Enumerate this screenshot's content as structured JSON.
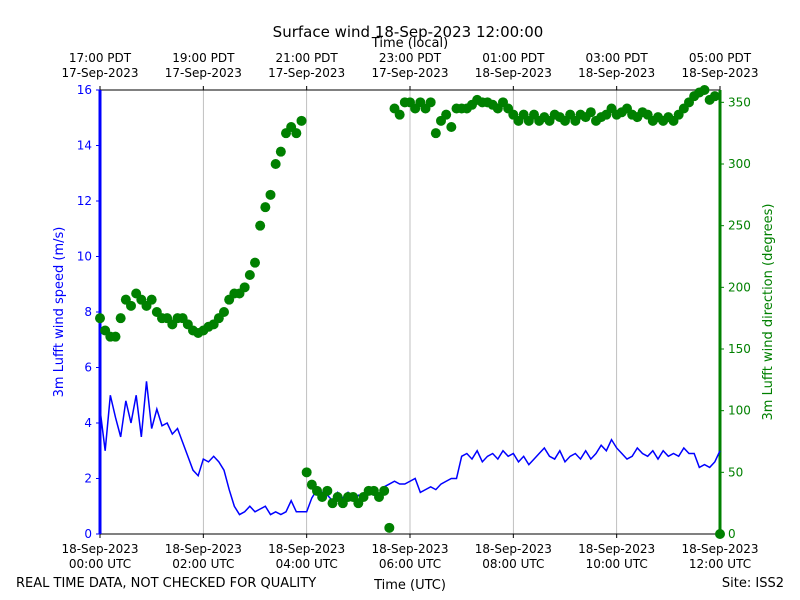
{
  "chart_data": {
    "type": "line",
    "title": "Surface wind 18-Sep-2023 12:00:00",
    "x2label": "Time (local)",
    "xlabel": "Time (UTC)",
    "ylabel": "3m Lufft wind speed (m/s)",
    "y2label": "3m Lufft wind direction (degrees)",
    "footer_left": "REAL TIME DATA, NOT CHECKED FOR QUALITY",
    "footer_right": "Site: ISS2",
    "xlim": [
      0,
      12
    ],
    "xticks": [
      {
        "value": 0,
        "label": "18-Sep-2023\n00:00 UTC"
      },
      {
        "value": 2,
        "label": "18-Sep-2023\n02:00 UTC"
      },
      {
        "value": 4,
        "label": "18-Sep-2023\n04:00 UTC"
      },
      {
        "value": 6,
        "label": "18-Sep-2023\n06:00 UTC"
      },
      {
        "value": 8,
        "label": "18-Sep-2023\n08:00 UTC"
      },
      {
        "value": 10,
        "label": "18-Sep-2023\n10:00 UTC"
      },
      {
        "value": 12,
        "label": "18-Sep-2023\n12:00 UTC"
      }
    ],
    "x2ticks": [
      {
        "value": 0,
        "label": "17:00 PDT\n17-Sep-2023"
      },
      {
        "value": 2,
        "label": "19:00 PDT\n17-Sep-2023"
      },
      {
        "value": 4,
        "label": "21:00 PDT\n17-Sep-2023"
      },
      {
        "value": 6,
        "label": "23:00 PDT\n17-Sep-2023"
      },
      {
        "value": 8,
        "label": "01:00 PDT\n18-Sep-2023"
      },
      {
        "value": 10,
        "label": "03:00 PDT\n18-Sep-2023"
      },
      {
        "value": 12,
        "label": "05:00 PDT\n18-Sep-2023"
      }
    ],
    "ylim": [
      0,
      16
    ],
    "yticks": [
      0,
      2,
      4,
      6,
      8,
      10,
      12,
      14,
      16
    ],
    "y2lim": [
      0,
      360
    ],
    "y2ticks": [
      0,
      50,
      100,
      150,
      200,
      250,
      300,
      350
    ],
    "grid": true,
    "x": [
      0,
      0.1,
      0.2,
      0.3,
      0.4,
      0.5,
      0.6,
      0.7,
      0.8,
      0.9,
      1,
      1.1,
      1.2,
      1.3,
      1.4,
      1.5,
      1.6,
      1.7,
      1.8,
      1.9,
      2,
      2.1,
      2.2,
      2.3,
      2.4,
      2.5,
      2.6,
      2.7,
      2.8,
      2.9,
      3,
      3.1,
      3.2,
      3.3,
      3.4,
      3.5,
      3.6,
      3.7,
      3.8,
      3.9,
      4,
      4.1,
      4.2,
      4.3,
      4.4,
      4.5,
      4.6,
      4.7,
      4.8,
      4.9,
      5,
      5.1,
      5.2,
      5.3,
      5.4,
      5.5,
      5.6,
      5.7,
      5.8,
      5.9,
      6,
      6.1,
      6.2,
      6.3,
      6.4,
      6.5,
      6.6,
      6.7,
      6.8,
      6.9,
      7,
      7.1,
      7.2,
      7.3,
      7.4,
      7.5,
      7.6,
      7.7,
      7.8,
      7.9,
      8,
      8.1,
      8.2,
      8.3,
      8.4,
      8.5,
      8.6,
      8.7,
      8.8,
      8.9,
      9,
      9.1,
      9.2,
      9.3,
      9.4,
      9.5,
      9.6,
      9.7,
      9.8,
      9.9,
      10,
      10.1,
      10.2,
      10.3,
      10.4,
      10.5,
      10.6,
      10.7,
      10.8,
      10.9,
      11,
      11.1,
      11.2,
      11.3,
      11.4,
      11.5,
      11.6,
      11.7,
      11.8,
      11.9,
      12
    ],
    "series": [
      {
        "name": "3m Lufft wind speed",
        "color": "#0000ff",
        "type": "line",
        "values": [
          4.5,
          3.0,
          5.0,
          4.2,
          3.5,
          4.8,
          4.0,
          5.0,
          3.5,
          5.5,
          3.8,
          4.5,
          3.9,
          4.0,
          3.6,
          3.8,
          3.3,
          2.8,
          2.3,
          2.1,
          2.7,
          2.6,
          2.8,
          2.6,
          2.3,
          1.6,
          1.0,
          0.7,
          0.8,
          1.0,
          0.8,
          0.9,
          1.0,
          0.7,
          0.8,
          0.7,
          0.8,
          1.2,
          0.8,
          0.8,
          0.8,
          1.3,
          1.6,
          1.5,
          1.4,
          1.2,
          1.5,
          1.3,
          1.5,
          1.2,
          1.4,
          1.3,
          1.5,
          1.4,
          1.4,
          1.7,
          1.8,
          1.9,
          1.8,
          1.8,
          1.9,
          2.0,
          1.5,
          1.6,
          1.7,
          1.6,
          1.8,
          1.9,
          2.0,
          2.0,
          2.8,
          2.9,
          2.7,
          3.0,
          2.6,
          2.8,
          2.9,
          2.7,
          3.0,
          2.8,
          2.9,
          2.6,
          2.8,
          2.5,
          2.7,
          2.9,
          3.1,
          2.8,
          2.7,
          3.0,
          2.6,
          2.8,
          2.9,
          2.7,
          3.0,
          2.7,
          2.9,
          3.2,
          3.0,
          3.4,
          3.1,
          2.9,
          2.7,
          2.8,
          3.1,
          2.9,
          2.8,
          3.0,
          2.7,
          3.0,
          2.8,
          2.9,
          2.8,
          3.1,
          2.9,
          2.9,
          2.4,
          2.5,
          2.4,
          2.6,
          3.0
        ]
      },
      {
        "name": "3m Lufft wind direction",
        "color": "#008000",
        "type": "scatter",
        "axis": "y2",
        "values": [
          175,
          165,
          160,
          160,
          175,
          190,
          185,
          195,
          190,
          185,
          190,
          180,
          175,
          175,
          170,
          175,
          175,
          170,
          165,
          163,
          165,
          168,
          170,
          175,
          180,
          190,
          195,
          195,
          200,
          210,
          220,
          250,
          265,
          275,
          300,
          310,
          325,
          330,
          325,
          335,
          50,
          40,
          35,
          30,
          35,
          25,
          30,
          25,
          30,
          30,
          25,
          30,
          35,
          35,
          30,
          35,
          5,
          345,
          340,
          350,
          350,
          345,
          350,
          345,
          350,
          325,
          335,
          340,
          330,
          345,
          345,
          345,
          348,
          352,
          350,
          350,
          348,
          345,
          350,
          345,
          340,
          335,
          340,
          335,
          340,
          335,
          338,
          335,
          340,
          338,
          335,
          340,
          335,
          340,
          338,
          342,
          335,
          338,
          340,
          345,
          340,
          342,
          345,
          340,
          338,
          342,
          340,
          335,
          338,
          335,
          338,
          335,
          340,
          345,
          350,
          355,
          358,
          360,
          352,
          355,
          0
        ]
      }
    ]
  }
}
